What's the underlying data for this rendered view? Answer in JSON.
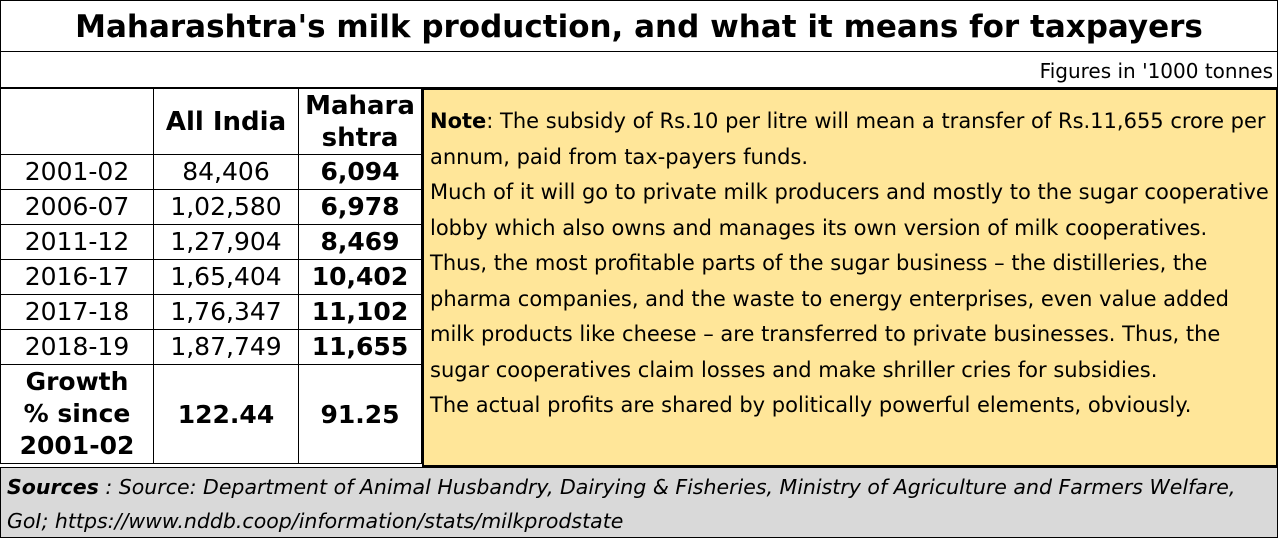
{
  "title": "Maharashtra's milk production, and what it means for taxpayers",
  "units": "Figures in '1000 tonnes",
  "chart_data": {
    "type": "table",
    "columns": [
      "",
      "All India",
      "Maharashtra"
    ],
    "column_display": [
      "",
      "All India",
      "Mahara shtra"
    ],
    "rows": [
      {
        "year": "2001-02",
        "all_india": "84,406",
        "maharashtra": "6,094"
      },
      {
        "year": "2006-07",
        "all_india": "1,02,580",
        "maharashtra": "6,978"
      },
      {
        "year": "2011-12",
        "all_india": "1,27,904",
        "maharashtra": "8,469"
      },
      {
        "year": "2016-17",
        "all_india": "1,65,404",
        "maharashtra": "10,402"
      },
      {
        "year": "2017-18",
        "all_india": "1,76,347",
        "maharashtra": "11,102"
      },
      {
        "year": "2018-19",
        "all_india": "1,87,749",
        "maharashtra": "11,655"
      }
    ],
    "growth": {
      "label_lines": [
        "Growth",
        "% since",
        "2001-02"
      ],
      "all_india": "122.44",
      "maharashtra": "91.25"
    }
  },
  "note": {
    "label": "Note",
    "paragraphs": [
      ": The subsidy of Rs.10 per litre will mean a transfer of Rs.11,655 crore per annum, paid from tax-payers funds.",
      "Much of it will go to private milk producers and mostly to the sugar cooperative lobby which also owns and manages its own version of milk cooperatives.",
      "Thus, the most profitable parts of the sugar business – the distilleries, the pharma companies, and the waste to energy enterprises, even value added milk products like cheese – are transferred to private businesses. Thus, the sugar cooperatives claim losses and make shriller cries for subsidies.",
      "The actual profits are shared by politically powerful elements, obviously."
    ]
  },
  "sources": {
    "label": "Sources",
    "text": " : Source: Department of Animal Husbandry, Dairying & Fisheries, Ministry of Agriculture and Farmers Welfare, GoI;  https://www.nddb.coop/information/stats/milkprodstate"
  },
  "colors": {
    "note_bg": "#ffe699",
    "sources_bg": "#d9d9d9"
  }
}
